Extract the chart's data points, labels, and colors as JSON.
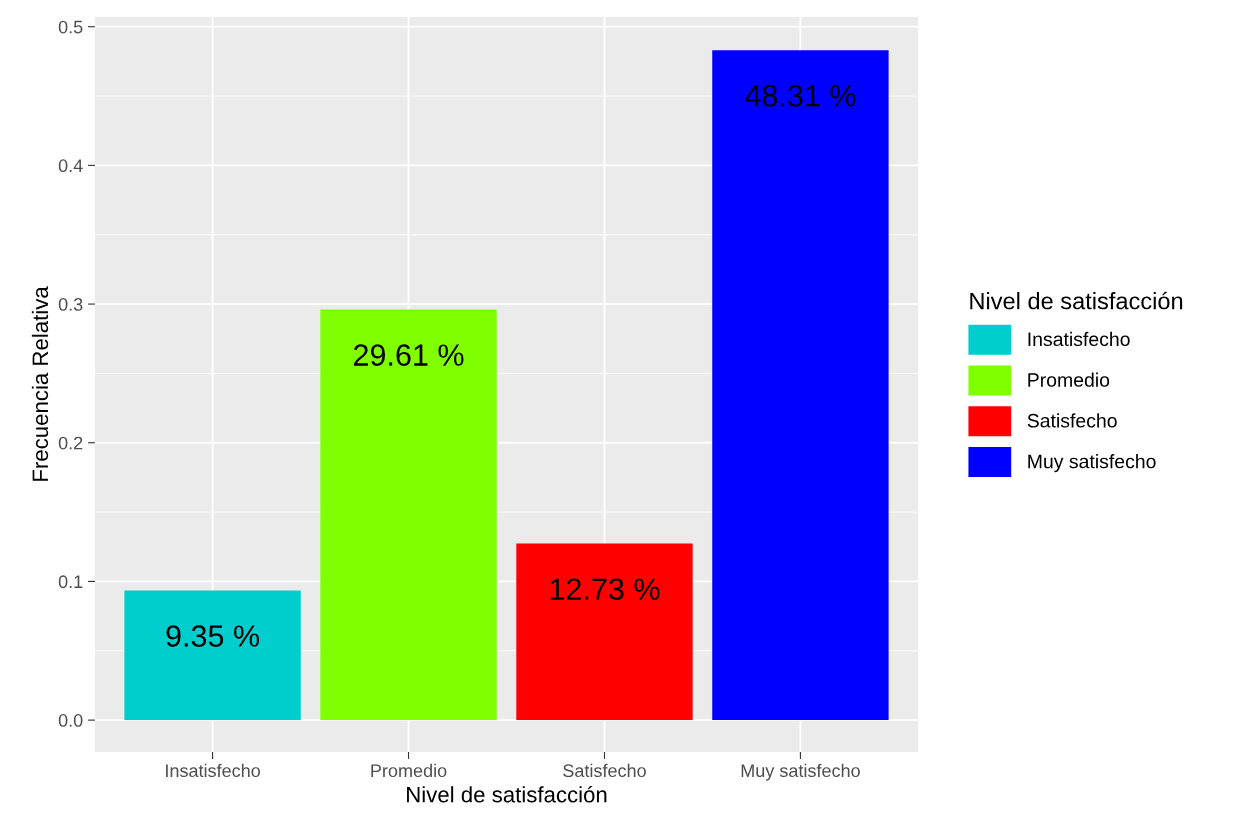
{
  "chart_data": {
    "type": "bar",
    "xlabel": "Nivel de satisfacción",
    "ylabel": "Frecuencia Relativa",
    "legend_title": "Nivel de satisfacción",
    "categories": [
      "Insatisfecho",
      "Promedio",
      "Satisfecho",
      "Muy satisfecho"
    ],
    "series": [
      {
        "name": "Insatisfecho",
        "color": "#00cdcd",
        "values": [
          0.0935,
          null,
          null,
          null
        ],
        "value_labels": [
          "9.35 %",
          null,
          null,
          null
        ]
      },
      {
        "name": "Promedio",
        "color": "#7fff00",
        "values": [
          null,
          0.2961,
          null,
          null
        ],
        "value_labels": [
          null,
          "29.61 %",
          null,
          null
        ]
      },
      {
        "name": "Satisfecho",
        "color": "#ff0000",
        "values": [
          null,
          null,
          0.1273,
          null
        ],
        "value_labels": [
          null,
          null,
          "12.73 %",
          null
        ]
      },
      {
        "name": "Muy satisfecho",
        "color": "#0000ff",
        "values": [
          null,
          null,
          null,
          0.4831
        ],
        "value_labels": [
          null,
          null,
          null,
          "48.31 %"
        ]
      }
    ],
    "ylim": [
      -0.023,
      0.507
    ],
    "yticks": [
      {
        "value": 0,
        "label": "0.0"
      },
      {
        "value": 0.1,
        "label": "0.1"
      },
      {
        "value": 0.2,
        "label": "0.2"
      },
      {
        "value": 0.3,
        "label": "0.3"
      },
      {
        "value": 0.4,
        "label": "0.4"
      },
      {
        "value": 0.5,
        "label": "0.5"
      }
    ],
    "grid": true,
    "legend": "right"
  }
}
